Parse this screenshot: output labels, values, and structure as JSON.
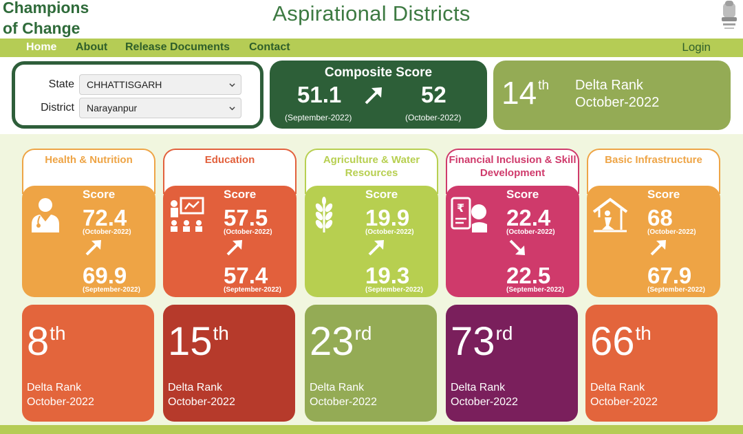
{
  "brand": {
    "line1": "Champions",
    "line2": "of Change"
  },
  "site_title": "Aspirational Districts",
  "nav": {
    "items": [
      "Home",
      "About",
      "Release Documents",
      "Contact"
    ],
    "login": "Login"
  },
  "filters": {
    "state_label": "State",
    "state_value": "CHHATTISGARH",
    "district_label": "District",
    "district_value": "Narayanpur"
  },
  "composite": {
    "title": "Composite Score",
    "prev_value": "51.1",
    "prev_period": "(September-2022)",
    "curr_value": "52",
    "curr_period": "(October-2022)",
    "trend": "up"
  },
  "overall_delta": {
    "rank": "14",
    "suffix": "th",
    "label": "Delta Rank",
    "period": "October-2022"
  },
  "sectors": [
    {
      "name": "Health & Nutrition",
      "score_label": "Score",
      "oct_value": "72.4",
      "oct_period": "(October-2022)",
      "sep_value": "69.9",
      "sep_period": "(September-2022)",
      "trend": "up",
      "icon": "doctor-icon",
      "color": "#eea445",
      "rank": "8",
      "rank_suffix": "th",
      "rank_label": "Delta Rank",
      "rank_period": "October-2022",
      "rank_color": "#e3653c"
    },
    {
      "name": "Education",
      "score_label": "Score",
      "oct_value": "57.5",
      "oct_period": "(October-2022)",
      "sep_value": "57.4",
      "sep_period": "(September-2022)",
      "trend": "up",
      "icon": "classroom-icon",
      "color": "#e2603c",
      "rank": "15",
      "rank_suffix": "th",
      "rank_label": "Delta Rank",
      "rank_period": "October-2022",
      "rank_color": "#b63a2b"
    },
    {
      "name": "Agriculture & Water Resources",
      "score_label": "Score",
      "oct_value": "19.9",
      "oct_period": "(October-2022)",
      "sep_value": "19.3",
      "sep_period": "(September-2022)",
      "trend": "up",
      "icon": "wheat-icon",
      "color": "#b7cf50",
      "rank": "23",
      "rank_suffix": "rd",
      "rank_label": "Delta Rank",
      "rank_period": "October-2022",
      "rank_color": "#94ab55"
    },
    {
      "name": "Financial Inclusion & Skill Development",
      "score_label": "Score",
      "oct_value": "22.4",
      "oct_period": "(October-2022)",
      "sep_value": "22.5",
      "sep_period": "(September-2022)",
      "trend": "down",
      "icon": "finance-icon",
      "color": "#cf3a6b",
      "rank": "73",
      "rank_suffix": "rd",
      "rank_label": "Delta Rank",
      "rank_period": "October-2022",
      "rank_color": "#7a1f5c"
    },
    {
      "name": "Basic Infrastructure",
      "score_label": "Score",
      "oct_value": "68",
      "oct_period": "(October-2022)",
      "sep_value": "67.9",
      "sep_period": "(September-2022)",
      "trend": "up",
      "icon": "house-icon",
      "color": "#eea445",
      "rank": "66",
      "rank_suffix": "th",
      "rank_label": "Delta Rank",
      "rank_period": "October-2022",
      "rank_color": "#e3653c"
    }
  ]
}
